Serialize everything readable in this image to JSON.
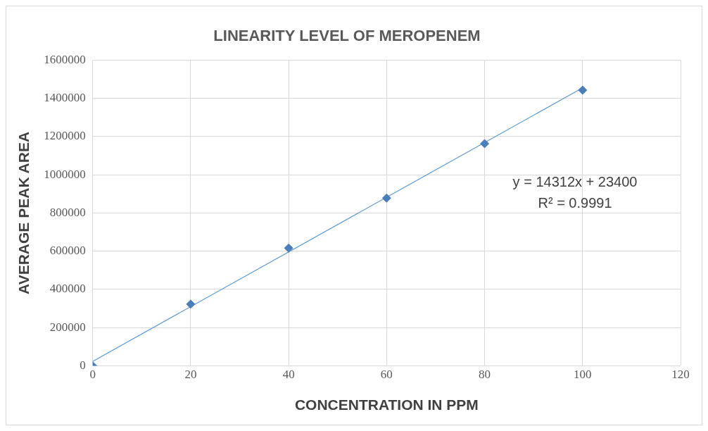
{
  "chart_data": {
    "type": "scatter",
    "title": "LINEARITY LEVEL OF MEROPENEM",
    "xlabel": "CONCENTRATION IN PPM",
    "ylabel": "AVERAGE PEAK AREA",
    "x": [
      0,
      20,
      40,
      60,
      80,
      100
    ],
    "series": [
      {
        "type": "scatter",
        "color": "#4a7ebb",
        "values": [
          0,
          323000,
          616000,
          878000,
          1163000,
          1443000
        ],
        "marker": "diamond"
      },
      {
        "type": "line",
        "color": "#5b9bd5",
        "x": [
          0,
          100
        ],
        "values": [
          23000,
          1455000
        ],
        "marker": "none",
        "line_style": "solid"
      }
    ],
    "annotations": [
      "y = 14312x + 23400\nR² = 0.9991"
    ],
    "xlim": [
      0,
      120
    ],
    "xticks": [
      0,
      20,
      40,
      60,
      80,
      100,
      120
    ],
    "ylim": [
      0,
      1600000
    ],
    "yticks": [
      0,
      200000,
      400000,
      600000,
      800000,
      1000000,
      1200000,
      1400000,
      1600000
    ],
    "grid": true,
    "legend": false
  }
}
